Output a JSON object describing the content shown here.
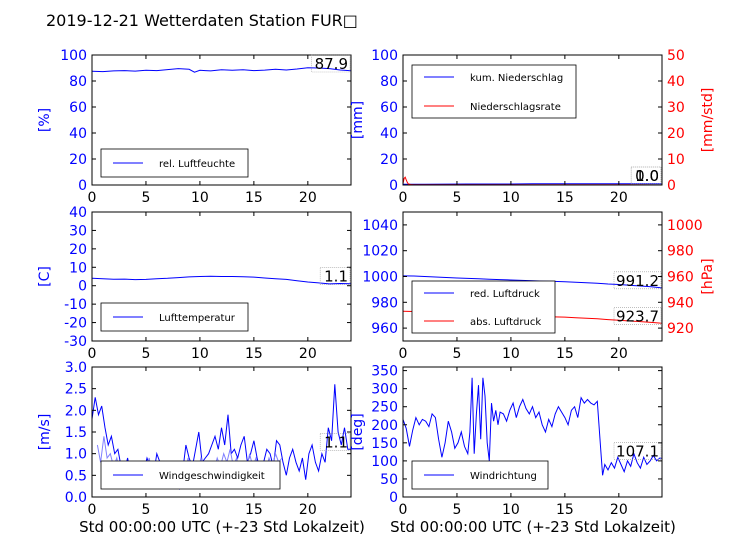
{
  "title": "2019-12-21 Wetterdaten Station FUR□",
  "xlabel_left": "Std 00:00:00 UTC (+-23 Std Lokalzeit)",
  "xlabel_right": "Std 00:00:00 UTC (+-23 Std Lokalzeit)",
  "colors": {
    "primary_axis": "#0000ff",
    "secondary_axis": "#ff0000",
    "gust": "#8080ff"
  },
  "chart_data": [
    {
      "id": "humidity",
      "type": "line",
      "ylabel": "[%]",
      "ylim": [
        0,
        100
      ],
      "yticks": [
        0,
        20,
        40,
        60,
        80,
        100
      ],
      "xlim": [
        0,
        24
      ],
      "xticks": [
        0,
        5,
        10,
        15,
        20
      ],
      "legend_loc": "lower-left",
      "last_value_label": "87.9",
      "series": [
        {
          "name": "rel. Luftfeuchte",
          "color": "#0000ff",
          "axis": "left",
          "x": [
            0,
            1,
            2,
            3,
            4,
            5,
            6,
            7,
            8,
            9,
            9.5,
            10,
            10.5,
            11,
            12,
            13,
            14,
            15,
            16,
            17,
            18,
            19,
            20,
            21,
            22,
            23,
            24
          ],
          "y": [
            87.5,
            87.2,
            87.8,
            88.0,
            87.6,
            88.3,
            88.0,
            88.8,
            89.5,
            89.0,
            86.8,
            88.2,
            88.0,
            87.8,
            88.6,
            88.3,
            88.7,
            88.0,
            88.4,
            89.0,
            88.5,
            89.2,
            90.2,
            90.0,
            89.5,
            88.5,
            87.9
          ]
        }
      ]
    },
    {
      "id": "precip",
      "type": "line",
      "ylabel": "[mm]",
      "ylim": [
        0,
        100
      ],
      "yticks": [
        0,
        20,
        40,
        60,
        80,
        100
      ],
      "y2label": "[mm/std]",
      "y2lim": [
        0,
        50
      ],
      "y2ticks": [
        0,
        10,
        20,
        30,
        40,
        50
      ],
      "xlim": [
        0,
        24
      ],
      "xticks": [
        0,
        5,
        10,
        15,
        20
      ],
      "legend_loc": "upper-left",
      "last_value_label": "1.0",
      "last_value_label2": "0.0",
      "series": [
        {
          "name": "kum. Niederschlag",
          "color": "#0000ff",
          "axis": "left",
          "x": [
            0,
            2,
            4,
            6,
            8,
            10,
            12,
            14,
            16,
            18,
            20,
            22,
            24
          ],
          "y": [
            0.5,
            0.6,
            0.7,
            0.8,
            0.8,
            0.8,
            0.9,
            0.9,
            0.9,
            1.0,
            1.0,
            1.0,
            1.0
          ]
        },
        {
          "name": "Niederschlagsrate",
          "color": "#ff0000",
          "axis": "right",
          "x": [
            0,
            0.1,
            0.2,
            0.3,
            0.4,
            0.5,
            0.7,
            1,
            2,
            4,
            6,
            8,
            10,
            12,
            14,
            16,
            18,
            20,
            22,
            24
          ],
          "y": [
            0.5,
            2.5,
            3.0,
            2.0,
            1.0,
            0.4,
            0.2,
            0.1,
            0.1,
            0.1,
            0.1,
            0.1,
            0.1,
            0.1,
            0.1,
            0.1,
            0.1,
            0.1,
            0.1,
            0.0
          ]
        }
      ]
    },
    {
      "id": "temperature",
      "type": "line",
      "ylabel": "[C]",
      "ylim": [
        -30,
        40
      ],
      "yticks": [
        -30,
        -20,
        -10,
        0,
        10,
        20,
        30,
        40
      ],
      "xlim": [
        0,
        24
      ],
      "xticks": [
        0,
        5,
        10,
        15,
        20
      ],
      "legend_loc": "lower-left",
      "last_value_label": "1.1",
      "series": [
        {
          "name": "Lufttemperatur",
          "color": "#0000ff",
          "axis": "left",
          "x": [
            0,
            1,
            2,
            3,
            4,
            5,
            6,
            7,
            8,
            9,
            10,
            11,
            12,
            13,
            14,
            15,
            16,
            17,
            18,
            19,
            20,
            21,
            22,
            23,
            24
          ],
          "y": [
            4.0,
            3.8,
            3.5,
            3.6,
            3.3,
            3.4,
            3.8,
            4.0,
            4.4,
            4.8,
            5.0,
            5.1,
            5.0,
            5.0,
            4.9,
            4.7,
            4.2,
            3.8,
            3.4,
            2.7,
            2.0,
            1.5,
            1.0,
            1.2,
            1.1
          ]
        }
      ]
    },
    {
      "id": "pressure",
      "type": "line",
      "ylabel": "",
      "ylim": [
        950,
        1050
      ],
      "yticks": [
        960,
        980,
        1000,
        1020,
        1040
      ],
      "y2label": "[hPa]",
      "y2lim": [
        910,
        1010
      ],
      "y2ticks": [
        920,
        940,
        960,
        980,
        1000
      ],
      "xlim": [
        0,
        24
      ],
      "xticks": [
        0,
        5,
        10,
        15,
        20
      ],
      "legend_loc": "lower-left",
      "last_value_label": "991.2",
      "last_value_label2": "923.7",
      "series": [
        {
          "name": "red. Luftdruck",
          "color": "#0000ff",
          "axis": "left",
          "x": [
            0,
            1,
            2,
            3,
            4,
            5,
            6,
            7,
            8,
            9,
            10,
            11,
            12,
            13,
            14,
            15,
            16,
            17,
            18,
            19,
            20,
            21,
            22,
            23,
            24
          ],
          "y": [
            1000.5,
            1000.4,
            1000.0,
            999.6,
            999.2,
            998.8,
            998.5,
            998.2,
            997.9,
            997.6,
            997.3,
            997.0,
            996.7,
            996.4,
            996.2,
            996.0,
            995.6,
            995.1,
            994.8,
            994.2,
            993.8,
            993.2,
            992.6,
            992.0,
            991.2
          ]
        },
        {
          "name": "abs. Luftdruck",
          "color": "#ff0000",
          "axis": "right",
          "x": [
            0,
            1,
            2,
            3,
            4,
            5,
            6,
            7,
            8,
            9,
            10,
            11,
            12,
            13,
            14,
            15,
            16,
            17,
            18,
            19,
            20,
            21,
            22,
            23,
            24
          ],
          "y": [
            933.0,
            932.9,
            932.6,
            932.2,
            931.8,
            931.4,
            931.0,
            930.7,
            930.4,
            930.1,
            929.8,
            929.5,
            929.2,
            928.9,
            928.7,
            928.5,
            928.1,
            927.6,
            927.2,
            926.6,
            926.1,
            925.5,
            925.0,
            924.4,
            923.7
          ]
        }
      ]
    },
    {
      "id": "windspeed",
      "type": "line",
      "ylabel": "[m/s]",
      "ylim": [
        0,
        3.0
      ],
      "yticks": [
        0.0,
        0.5,
        1.0,
        1.5,
        2.0,
        2.5,
        3.0
      ],
      "xlim": [
        0,
        24
      ],
      "xticks": [
        0,
        5,
        10,
        15,
        20
      ],
      "legend_loc": "lower-left",
      "last_value_label": "1.1",
      "series": [
        {
          "name": "Windgeschwindigkeit",
          "color": "#0000ff",
          "axis": "left",
          "x": [
            0,
            0.3,
            0.6,
            0.9,
            1.2,
            1.5,
            1.8,
            2.1,
            2.4,
            2.7,
            3.0,
            3.3,
            3.6,
            3.9,
            4.2,
            4.5,
            4.8,
            5.1,
            5.4,
            5.7,
            6.0,
            6.3,
            6.6,
            6.9,
            7.2,
            7.5,
            7.8,
            8.1,
            8.4,
            8.7,
            9.0,
            9.3,
            9.6,
            9.9,
            10.2,
            10.5,
            10.8,
            11.1,
            11.4,
            11.7,
            12.0,
            12.3,
            12.6,
            12.9,
            13.2,
            13.5,
            13.8,
            14.1,
            14.4,
            14.7,
            15.0,
            15.3,
            15.6,
            15.9,
            16.2,
            16.5,
            16.8,
            17.1,
            17.4,
            17.7,
            18.0,
            18.3,
            18.6,
            18.9,
            19.2,
            19.5,
            19.8,
            20.1,
            20.4,
            20.7,
            21.0,
            21.3,
            21.6,
            21.9,
            22.2,
            22.5,
            22.8,
            23.1,
            23.4,
            23.7,
            24.0
          ],
          "y": [
            1.8,
            2.3,
            1.9,
            2.1,
            1.6,
            1.2,
            1.4,
            1.0,
            1.1,
            0.7,
            0.6,
            0.9,
            0.5,
            0.8,
            0.7,
            0.4,
            0.6,
            0.9,
            0.7,
            0.5,
            1.0,
            0.8,
            0.6,
            0.3,
            0.5,
            0.8,
            0.4,
            0.2,
            0.6,
            1.2,
            0.9,
            0.7,
            1.1,
            1.5,
            0.8,
            0.9,
            1.0,
            1.2,
            1.4,
            1.1,
            1.6,
            1.2,
            1.9,
            1.0,
            1.1,
            0.9,
            1.2,
            1.4,
            0.8,
            1.0,
            1.3,
            0.9,
            0.6,
            0.8,
            1.1,
            1.0,
            0.7,
            1.3,
            1.2,
            0.8,
            0.5,
            0.9,
            1.1,
            0.8,
            0.6,
            0.9,
            0.4,
            1.0,
            1.2,
            0.8,
            0.6,
            1.0,
            0.8,
            1.6,
            1.3,
            2.6,
            1.5,
            1.2,
            1.6,
            1.1,
            1.1
          ]
        },
        {
          "name": "",
          "color": "#8080ff",
          "axis": "left",
          "x": [
            0.5,
            0.8,
            1.1,
            1.4,
            1.7,
            2.0,
            2.3,
            2.6,
            2.9,
            3.2,
            3.5,
            3.8,
            4.1,
            4.4,
            4.7,
            5.0,
            5.3,
            5.6,
            5.9,
            6.2,
            6.5,
            6.8,
            7.1,
            7.4,
            7.7,
            8.0,
            8.3,
            8.6,
            8.9,
            9.2,
            9.5,
            9.8,
            10.1,
            10.4,
            10.7,
            11.0,
            11.3,
            11.6,
            11.9,
            12.2,
            12.5,
            12.8,
            13.1,
            13.4,
            13.7,
            14.0,
            14.3,
            14.6,
            14.9,
            15.2,
            15.5,
            15.8,
            16.1,
            16.4,
            16.7,
            17.0,
            17.3,
            17.6
          ],
          "y": [
            1.2,
            0.8,
            1.4,
            0.9,
            1.0,
            0.7,
            0.9,
            0.5,
            0.8,
            0.6,
            0.3,
            0.7,
            0.5,
            0.8,
            0.4,
            0.6,
            0.9,
            0.5,
            0.7,
            0.3,
            0.6,
            0.8,
            0.2,
            0.5,
            0.7,
            0.3,
            0.6,
            0.4,
            0.9,
            0.5,
            0.8,
            0.6,
            0.9,
            0.7,
            0.5,
            0.8,
            0.6,
            0.9,
            0.7,
            1.0,
            0.8,
            1.1,
            0.7,
            0.9,
            0.5,
            0.8,
            0.6,
            1.0,
            0.7,
            0.9,
            0.5,
            0.8,
            0.6,
            0.9,
            0.7,
            1.0,
            0.8,
            0.9
          ]
        }
      ]
    },
    {
      "id": "winddir",
      "type": "line",
      "ylabel": "[deg]",
      "ylim": [
        0,
        360
      ],
      "yticks": [
        0,
        50,
        100,
        150,
        200,
        250,
        300,
        350
      ],
      "xlim": [
        0,
        24
      ],
      "xticks": [
        0,
        5,
        10,
        15,
        20
      ],
      "legend_loc": "lower-left",
      "last_value_label": "107.1",
      "series": [
        {
          "name": "Windrichtung",
          "color": "#0000ff",
          "axis": "left",
          "x": [
            0,
            0.3,
            0.6,
            0.9,
            1.2,
            1.5,
            1.8,
            2.1,
            2.4,
            2.7,
            3.0,
            3.3,
            3.6,
            3.9,
            4.2,
            4.5,
            4.8,
            5.1,
            5.4,
            5.7,
            6.0,
            6.2,
            6.4,
            6.6,
            6.8,
            7.0,
            7.2,
            7.4,
            7.6,
            7.8,
            8.0,
            8.2,
            8.4,
            8.6,
            8.8,
            9.0,
            9.3,
            9.6,
            9.9,
            10.2,
            10.5,
            10.8,
            11.1,
            11.4,
            11.7,
            12.0,
            12.3,
            12.6,
            12.9,
            13.2,
            13.5,
            13.8,
            14.1,
            14.4,
            14.7,
            15.0,
            15.3,
            15.6,
            15.9,
            16.2,
            16.5,
            16.8,
            17.1,
            17.4,
            17.7,
            18.0,
            18.3,
            18.5,
            18.7,
            19.0,
            19.3,
            19.6,
            19.9,
            20.2,
            20.5,
            20.8,
            21.1,
            21.4,
            21.7,
            22.0,
            22.3,
            22.6,
            22.9,
            23.2,
            23.5,
            23.8,
            24.0
          ],
          "y": [
            215,
            190,
            140,
            185,
            220,
            200,
            215,
            210,
            195,
            230,
            220,
            160,
            110,
            150,
            210,
            180,
            135,
            150,
            180,
            140,
            120,
            180,
            330,
            120,
            230,
            310,
            160,
            330,
            280,
            150,
            100,
            260,
            210,
            240,
            200,
            235,
            230,
            210,
            240,
            260,
            220,
            250,
            270,
            245,
            230,
            250,
            220,
            235,
            200,
            180,
            215,
            195,
            230,
            250,
            235,
            220,
            200,
            240,
            250,
            220,
            275,
            260,
            270,
            260,
            255,
            265,
            140,
            60,
            90,
            75,
            95,
            80,
            110,
            90,
            70,
            100,
            85,
            120,
            95,
            80,
            110,
            90,
            100,
            115,
            100,
            108,
            107
          ]
        }
      ]
    }
  ]
}
